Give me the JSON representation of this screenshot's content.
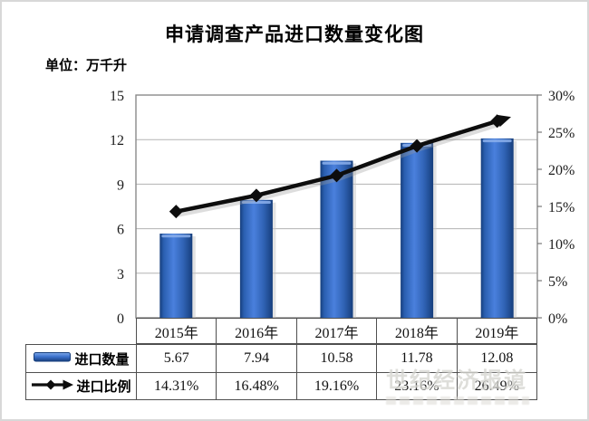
{
  "chart_data": {
    "type": "combo-bar-line",
    "title": "申请调查产品进口数量变化图",
    "unit_label": "单位：万千升",
    "categories": [
      "2015年",
      "2016年",
      "2017年",
      "2018年",
      "2019年"
    ],
    "series": [
      {
        "name": "进口数量",
        "type": "bar",
        "axis": "left",
        "values": [
          5.67,
          7.94,
          10.58,
          11.78,
          12.08
        ],
        "color": "#4a80dd"
      },
      {
        "name": "进口比例",
        "type": "line",
        "axis": "right",
        "marker": "diamond-with-arrow-end",
        "values": [
          14.31,
          16.48,
          19.16,
          23.16,
          26.49
        ],
        "color": "#0d0d0d"
      }
    ],
    "left_axis": {
      "min": 0,
      "max": 15,
      "ticks": [
        0,
        3,
        6,
        9,
        12,
        15
      ]
    },
    "right_axis": {
      "min": 0,
      "max": 30,
      "ticks": [
        0,
        5,
        10,
        15,
        20,
        25,
        30
      ],
      "tick_suffix": "%"
    },
    "grid": "horizontal",
    "legend_position": "table-left"
  },
  "table": {
    "rows": [
      {
        "label": "进口数量",
        "values": [
          "5.67",
          "7.94",
          "10.58",
          "11.78",
          "12.08"
        ]
      },
      {
        "label": "进口比例",
        "values": [
          "14.31%",
          "16.48%",
          "19.16%",
          "23.16%",
          "26.49%"
        ]
      }
    ]
  },
  "watermark": {
    "line1": "世纪经济报道"
  }
}
